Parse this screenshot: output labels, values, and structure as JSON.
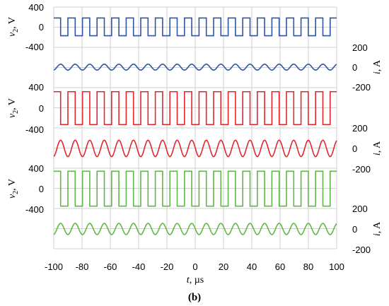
{
  "chart_data": {
    "type": "line",
    "caption": "(b)",
    "x": {
      "label": "t, µs",
      "range": [
        -100,
        100
      ],
      "ticks": [
        "-100",
        "-80",
        "-60",
        "-40",
        "-20",
        "0",
        "20",
        "40",
        "60",
        "80",
        "100"
      ]
    },
    "grid": true,
    "panels": [
      {
        "color": "#2f55a4",
        "voltage": {
          "ylabel": "v2, V",
          "ylabel_main": "v",
          "ylabel_sub": "2",
          "ylabel_rest": ", V",
          "ticks": [
            "400",
            "0",
            "-400"
          ],
          "waveform": "square",
          "amplitude_V": 180,
          "period_us": 10.3
        },
        "current": {
          "ylabel": "i, A",
          "ylabel_main": "i",
          "ylabel_rest": ", A",
          "ticks": [
            "200",
            "0",
            "-200"
          ],
          "waveform": "sine",
          "amplitude_A": 30,
          "period_us": 10.3
        }
      },
      {
        "color": "#e3262b",
        "voltage": {
          "ylabel": "v2, V",
          "ylabel_main": "v",
          "ylabel_sub": "2",
          "ylabel_rest": ", V",
          "ticks": [
            "400",
            "0",
            "-400"
          ],
          "waveform": "square",
          "amplitude_V": 310,
          "period_us": 10.3
        },
        "current": {
          "ylabel": "i, A",
          "ylabel_main": "i",
          "ylabel_rest": ", A",
          "ticks": [
            "200",
            "0",
            "-200"
          ],
          "waveform": "sine",
          "amplitude_A": 80,
          "period_us": 10.3
        }
      },
      {
        "color": "#5fb847",
        "voltage": {
          "ylabel": "v2, V",
          "ylabel_main": "v",
          "ylabel_sub": "2",
          "ylabel_rest": ", V",
          "ticks": [
            "400",
            "0",
            "-400"
          ],
          "waveform": "square",
          "amplitude_V": 340,
          "period_us": 10.3
        },
        "current": {
          "ylabel": "i, A",
          "ylabel_main": "i",
          "ylabel_rest": ", A",
          "ticks": [
            "200",
            "0",
            "-200"
          ],
          "waveform": "sine",
          "amplitude_A": 55,
          "period_us": 10.3
        }
      }
    ]
  }
}
